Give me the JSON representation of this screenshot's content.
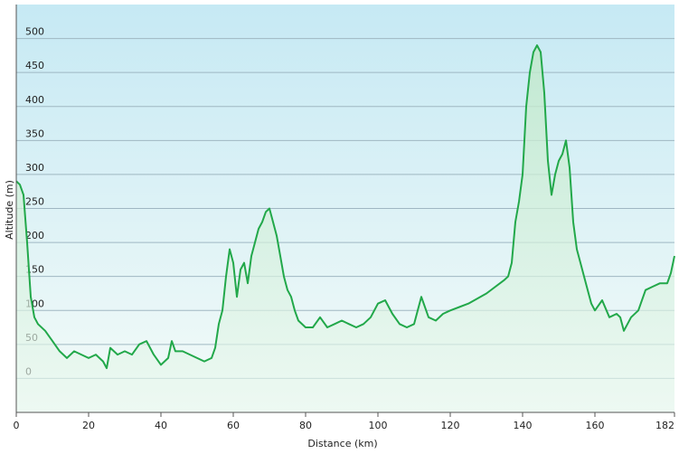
{
  "chart_data": {
    "type": "line",
    "xlabel": "Distance  (km)",
    "ylabel": "Altitude (m)",
    "x": [
      0,
      1,
      2,
      3,
      4,
      5,
      6,
      8,
      10,
      12,
      14,
      16,
      18,
      20,
      22,
      24,
      25,
      26,
      28,
      30,
      32,
      34,
      36,
      38,
      40,
      42,
      43,
      44,
      46,
      48,
      50,
      52,
      54,
      55,
      56,
      57,
      58,
      59,
      60,
      61,
      62,
      63,
      64,
      65,
      66,
      67,
      68,
      69,
      70,
      71,
      72,
      73,
      74,
      75,
      76,
      77,
      78,
      80,
      82,
      84,
      86,
      88,
      90,
      92,
      94,
      96,
      98,
      100,
      102,
      104,
      106,
      108,
      110,
      112,
      114,
      116,
      118,
      120,
      125,
      130,
      135,
      136,
      137,
      138,
      139,
      140,
      141,
      142,
      143,
      144,
      145,
      146,
      147,
      148,
      149,
      150,
      151,
      152,
      153,
      154,
      155,
      156,
      157,
      158,
      159,
      160,
      162,
      164,
      166,
      167,
      168,
      170,
      172,
      174,
      176,
      178,
      180,
      181,
      182
    ],
    "series": [
      {
        "name": "Altitude",
        "color": "#22a84a",
        "values": [
          290,
          285,
          270,
          200,
          120,
          90,
          80,
          70,
          55,
          40,
          30,
          40,
          35,
          30,
          35,
          25,
          15,
          45,
          35,
          40,
          35,
          50,
          55,
          35,
          20,
          30,
          55,
          40,
          40,
          35,
          30,
          25,
          30,
          45,
          80,
          100,
          150,
          190,
          170,
          120,
          160,
          170,
          140,
          180,
          200,
          220,
          230,
          245,
          250,
          230,
          210,
          180,
          150,
          130,
          120,
          100,
          85,
          75,
          75,
          90,
          75,
          80,
          85,
          80,
          75,
          80,
          90,
          110,
          115,
          95,
          80,
          75,
          80,
          120,
          90,
          85,
          95,
          100,
          110,
          125,
          145,
          150,
          170,
          230,
          260,
          300,
          400,
          450,
          480,
          490,
          480,
          420,
          320,
          270,
          300,
          320,
          330,
          350,
          310,
          230,
          190,
          170,
          150,
          130,
          110,
          100,
          115,
          90,
          95,
          90,
          70,
          90,
          100,
          130,
          135,
          140,
          140,
          155,
          180
        ]
      }
    ],
    "xlim": [
      0,
      182
    ],
    "ylim": [
      -50,
      550
    ],
    "xticks": [
      0,
      20,
      40,
      60,
      80,
      100,
      120,
      140,
      160,
      182
    ],
    "yticks": [
      0,
      50,
      100,
      150,
      200,
      250,
      300,
      350,
      400,
      450,
      500
    ],
    "grid": true
  }
}
